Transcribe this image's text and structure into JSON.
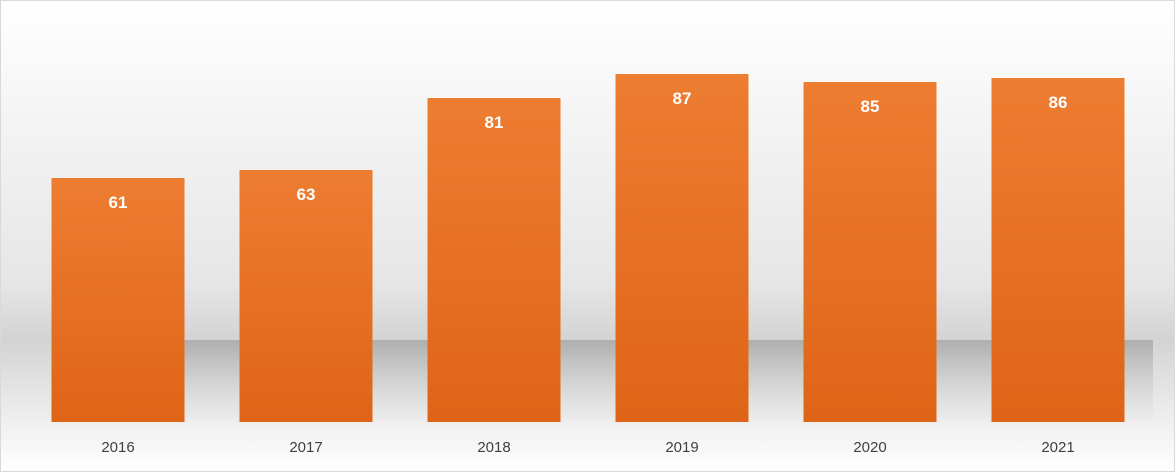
{
  "chart_data": {
    "type": "bar",
    "categories": [
      "2016",
      "2017",
      "2018",
      "2019",
      "2020",
      "2021"
    ],
    "values": [
      61,
      63,
      81,
      87,
      85,
      86
    ],
    "data_labels": [
      "61",
      "63",
      "81",
      "87",
      "85",
      "86"
    ],
    "title": "",
    "xlabel": "",
    "ylabel": "",
    "ylim": [
      0,
      100
    ],
    "grid": false,
    "legend": "none",
    "colors": {
      "bar_top": "#ED7D31",
      "bar_bottom": "#DF6417",
      "label": "#FFFFFF",
      "tick": "#404040",
      "border": "#D9D9D9"
    }
  }
}
